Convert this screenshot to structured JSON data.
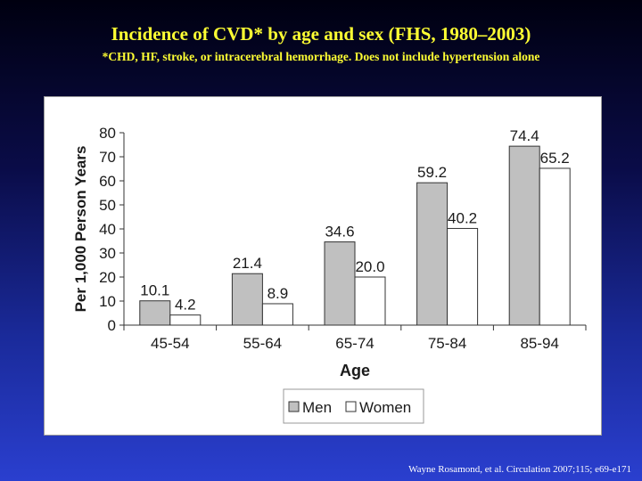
{
  "slide": {
    "title": "Incidence of CVD* by age and sex (FHS, 1980–2003)",
    "subtitle": "*CHD, HF, stroke, or intracerebral hemorrhage. Does not include hypertension alone",
    "citation": "Wayne Rosamond, et al. Circulation  2007;115; e69-e171"
  },
  "chart_data": {
    "type": "bar",
    "title": "",
    "xlabel": "Age",
    "ylabel": "Per 1,000 Person Years",
    "ylim": [
      0,
      80
    ],
    "yticks": [
      0,
      10,
      20,
      30,
      40,
      50,
      60,
      70,
      80
    ],
    "categories": [
      "45-54",
      "55-64",
      "65-74",
      "75-84",
      "85-94"
    ],
    "series": [
      {
        "name": "Men",
        "values": [
          10.1,
          21.4,
          34.6,
          59.2,
          74.4
        ],
        "labels": [
          "10.1",
          "21.4",
          "34.6",
          "59.2",
          "74.4"
        ],
        "color": "#c0c0c0"
      },
      {
        "name": "Women",
        "values": [
          4.2,
          8.9,
          20.0,
          40.2,
          65.2
        ],
        "labels": [
          "4.2",
          "8.9",
          "20.0",
          "40.2",
          "65.2"
        ],
        "color": "#ffffff"
      }
    ],
    "grid": false,
    "legend": "bottom"
  }
}
